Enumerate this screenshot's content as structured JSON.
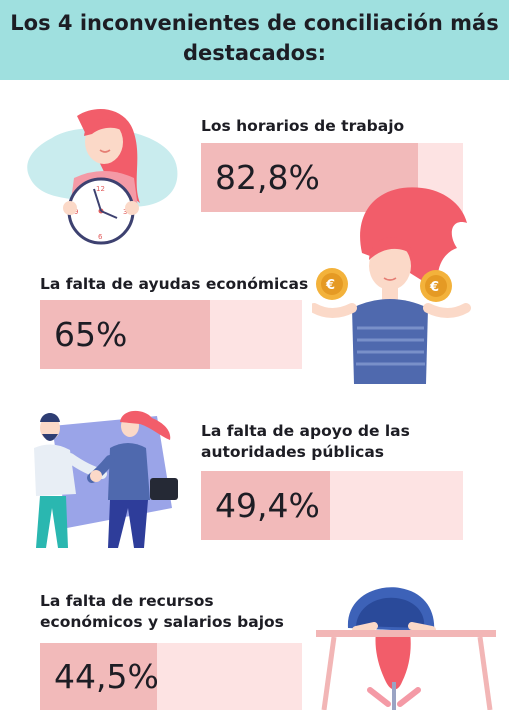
{
  "title": "Los 4 inconvenientes de conciliación más destacados:",
  "colors": {
    "header": "#9fe0df",
    "track": "#fde3e3",
    "fill": "#f2baba",
    "text": "#1d1d24"
  },
  "chart_data": {
    "type": "bar",
    "categories": [
      "Los horarios de trabajo",
      "La falta de ayudas económicas",
      "La falta de apoyo de las autoridades públicas",
      "La falta de recursos económicos y salarios bajos"
    ],
    "values": [
      82.8,
      65,
      49.4,
      44.5
    ],
    "value_labels": [
      "82,8%",
      "65%",
      "49,4%",
      "44,5%"
    ],
    "ylim": [
      0,
      100
    ]
  },
  "items": [
    {
      "label_lines": [
        "Los horarios de trabajo"
      ],
      "value_label": "82,8%"
    },
    {
      "label_lines": [
        "La falta de ayudas económicas"
      ],
      "value_label": "65%"
    },
    {
      "label_lines": [
        "La falta de apoyo de las",
        "autoridades públicas"
      ],
      "value_label": "49,4%"
    },
    {
      "label_lines": [
        "La falta de recursos",
        "económicos y salarios bajos"
      ],
      "value_label": "44,5%"
    }
  ],
  "illustrations": [
    "woman-clock-illustration",
    "woman-coins-illustration",
    "handshake-illustration",
    "tired-woman-desk-illustration"
  ]
}
